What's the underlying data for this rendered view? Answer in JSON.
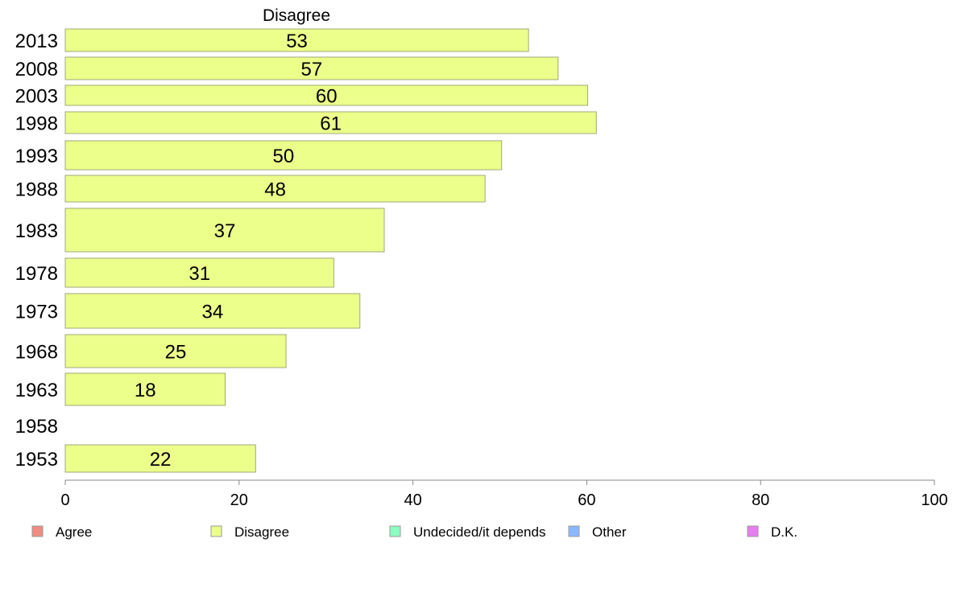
{
  "chart_data": {
    "type": "bar",
    "orientation": "horizontal",
    "title": "Disagree",
    "categories": [
      "2013",
      "2008",
      "2003",
      "1998",
      "1993",
      "1988",
      "1983",
      "1978",
      "1973",
      "1968",
      "1963",
      "1958",
      "1953"
    ],
    "series": [
      {
        "name": "Disagree",
        "values": [
          53.3,
          56.7,
          60.1,
          61.1,
          50.2,
          48.3,
          36.7,
          30.9,
          33.9,
          25.4,
          18.4,
          null,
          21.9
        ],
        "labels": [
          "53",
          "57",
          "60",
          "61",
          "50",
          "48",
          "37",
          "31",
          "34",
          "25",
          "18",
          "",
          "22"
        ]
      }
    ],
    "xlim": [
      0,
      100
    ],
    "xticks": [
      "0",
      "20",
      "40",
      "60",
      "80",
      "100"
    ],
    "grid": false,
    "legend_position": "bottom",
    "legend": [
      {
        "label": "Agree",
        "color": "#f08c84"
      },
      {
        "label": "Disagree",
        "color": "#ecff8a"
      },
      {
        "label": "Undecided/it depends",
        "color": "#8affc0"
      },
      {
        "label": "Other",
        "color": "#8ab8ff"
      },
      {
        "label": "D.K.",
        "color": "#e87cf0"
      }
    ],
    "bar_color": "#ecff8a",
    "bar_stroke": "#a0a878"
  }
}
